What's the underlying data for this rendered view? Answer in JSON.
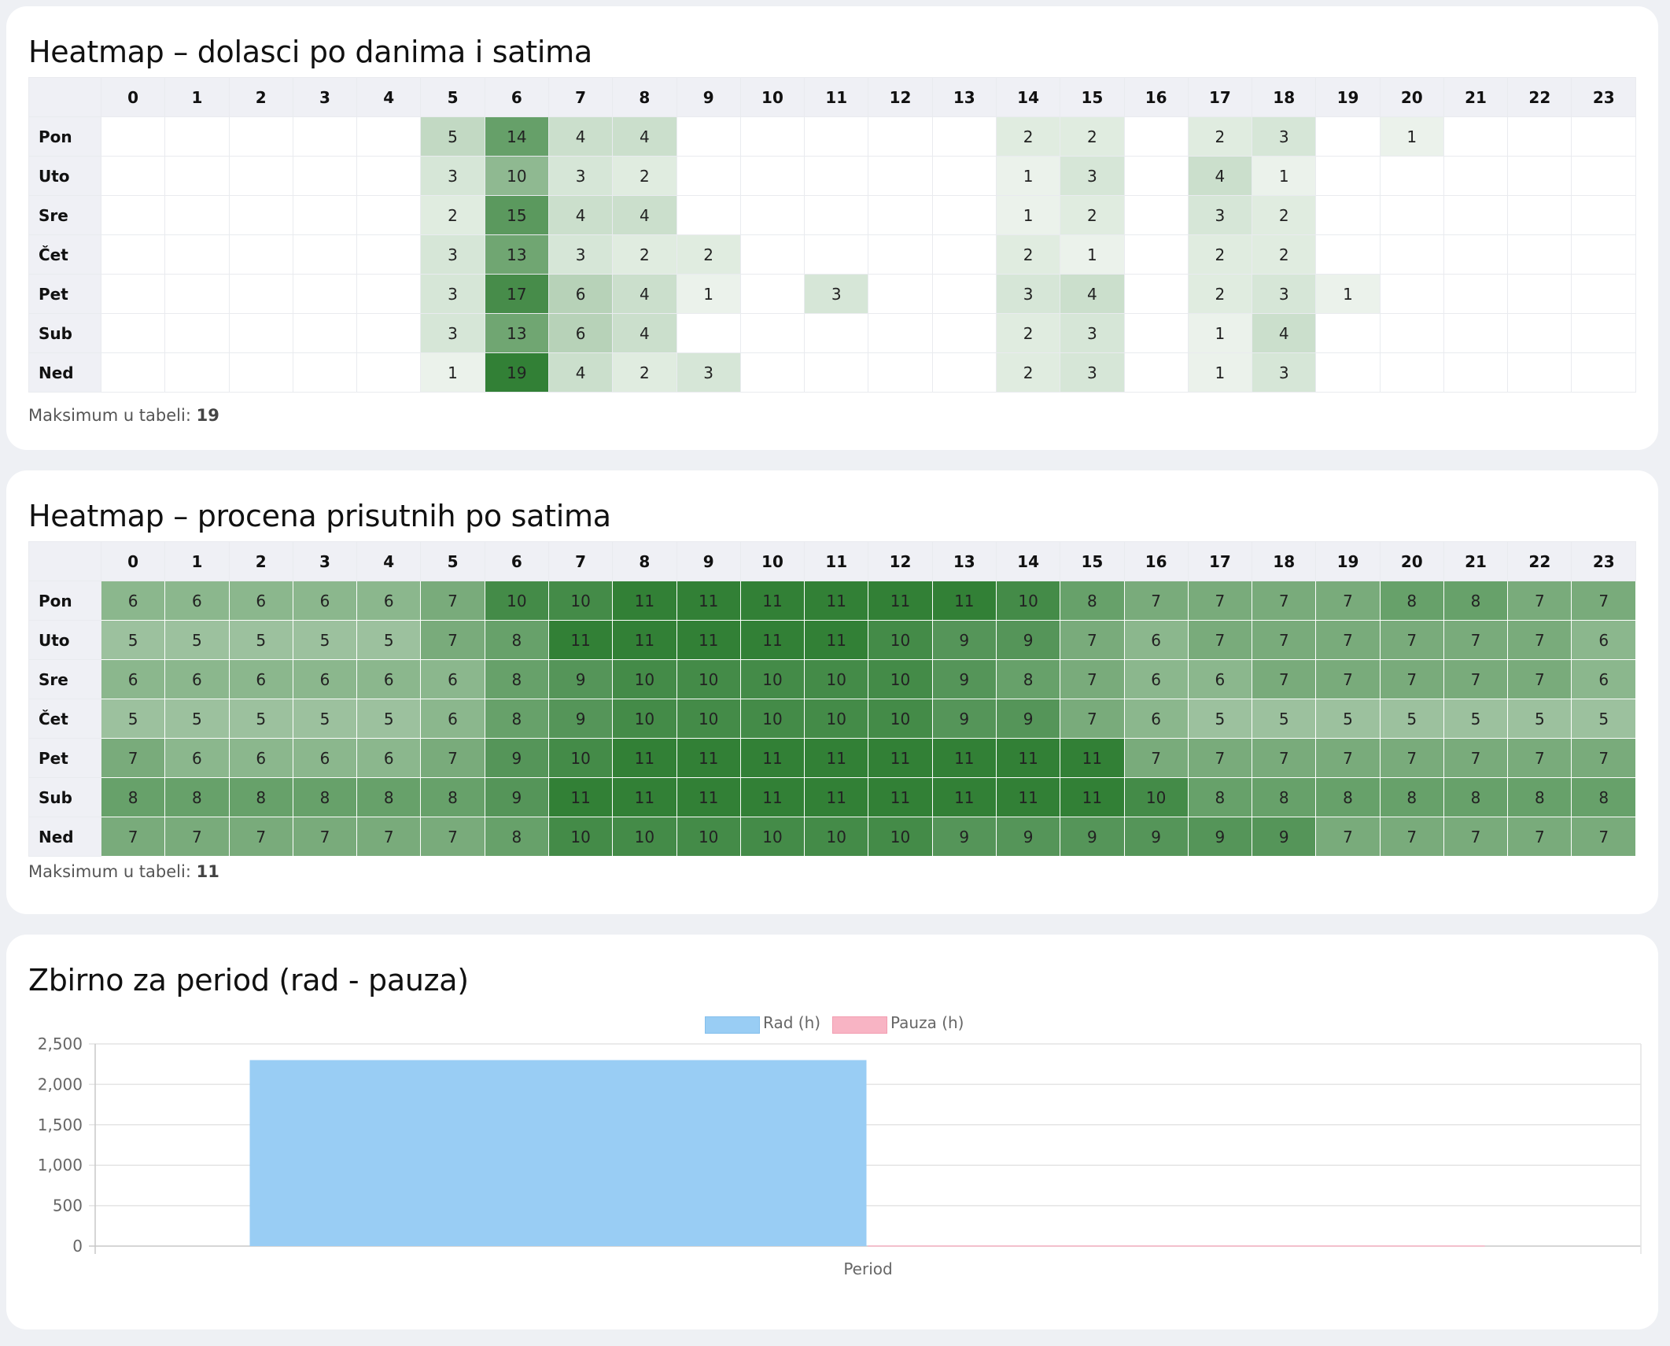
{
  "hours": [
    "0",
    "1",
    "2",
    "3",
    "4",
    "5",
    "6",
    "7",
    "8",
    "9",
    "10",
    "11",
    "12",
    "13",
    "14",
    "15",
    "16",
    "17",
    "18",
    "19",
    "20",
    "21",
    "22",
    "23"
  ],
  "heatmap_arrivals": {
    "title": "Heatmap – dolasci po danima i satima",
    "max_label": "Maksimum u tabeli:",
    "max_value": "19",
    "rows": [
      {
        "day": "Pon",
        "values": [
          "",
          "",
          "",
          "",
          "",
          "5",
          "14",
          "4",
          "4",
          "",
          "",
          "",
          "",
          "",
          "2",
          "2",
          "",
          "2",
          "3",
          "",
          "1",
          "",
          "",
          ""
        ]
      },
      {
        "day": "Uto",
        "values": [
          "",
          "",
          "",
          "",
          "",
          "3",
          "10",
          "3",
          "2",
          "",
          "",
          "",
          "",
          "",
          "1",
          "3",
          "",
          "4",
          "1",
          "",
          "",
          "",
          "",
          ""
        ]
      },
      {
        "day": "Sre",
        "values": [
          "",
          "",
          "",
          "",
          "",
          "2",
          "15",
          "4",
          "4",
          "",
          "",
          "",
          "",
          "",
          "1",
          "2",
          "",
          "3",
          "2",
          "",
          "",
          "",
          "",
          ""
        ]
      },
      {
        "day": "Čet",
        "values": [
          "",
          "",
          "",
          "",
          "",
          "3",
          "13",
          "3",
          "2",
          "2",
          "",
          "",
          "",
          "",
          "2",
          "1",
          "",
          "2",
          "2",
          "",
          "",
          "",
          "",
          ""
        ]
      },
      {
        "day": "Pet",
        "values": [
          "",
          "",
          "",
          "",
          "",
          "3",
          "17",
          "6",
          "4",
          "1",
          "",
          "3",
          "",
          "",
          "3",
          "4",
          "",
          "2",
          "3",
          "1",
          "",
          "",
          "",
          ""
        ]
      },
      {
        "day": "Sub",
        "values": [
          "",
          "",
          "",
          "",
          "",
          "3",
          "13",
          "6",
          "4",
          "",
          "",
          "",
          "",
          "",
          "2",
          "3",
          "",
          "1",
          "4",
          "",
          "",
          "",
          "",
          ""
        ]
      },
      {
        "day": "Ned",
        "values": [
          "",
          "",
          "",
          "",
          "",
          "1",
          "19",
          "4",
          "2",
          "3",
          "",
          "",
          "",
          "",
          "2",
          "3",
          "",
          "1",
          "3",
          "",
          "",
          "",
          "",
          ""
        ]
      }
    ]
  },
  "heatmap_presence": {
    "title": "Heatmap – procena prisutnih po satima",
    "max_label": "Maksimum u tabeli:",
    "max_value": "11",
    "rows": [
      {
        "day": "Pon",
        "values": [
          "6",
          "6",
          "6",
          "6",
          "6",
          "7",
          "10",
          "10",
          "11",
          "11",
          "11",
          "11",
          "11",
          "11",
          "10",
          "8",
          "7",
          "7",
          "7",
          "7",
          "8",
          "8",
          "7",
          "7"
        ]
      },
      {
        "day": "Uto",
        "values": [
          "5",
          "5",
          "5",
          "5",
          "5",
          "7",
          "8",
          "11",
          "11",
          "11",
          "11",
          "11",
          "10",
          "9",
          "9",
          "7",
          "6",
          "7",
          "7",
          "7",
          "7",
          "7",
          "7",
          "6"
        ]
      },
      {
        "day": "Sre",
        "values": [
          "6",
          "6",
          "6",
          "6",
          "6",
          "6",
          "8",
          "9",
          "10",
          "10",
          "10",
          "10",
          "10",
          "9",
          "8",
          "7",
          "6",
          "6",
          "7",
          "7",
          "7",
          "7",
          "7",
          "6"
        ]
      },
      {
        "day": "Čet",
        "values": [
          "5",
          "5",
          "5",
          "5",
          "5",
          "6",
          "8",
          "9",
          "10",
          "10",
          "10",
          "10",
          "10",
          "9",
          "9",
          "7",
          "6",
          "5",
          "5",
          "5",
          "5",
          "5",
          "5",
          "5"
        ]
      },
      {
        "day": "Pet",
        "values": [
          "7",
          "6",
          "6",
          "6",
          "6",
          "7",
          "9",
          "10",
          "11",
          "11",
          "11",
          "11",
          "11",
          "11",
          "11",
          "11",
          "7",
          "7",
          "7",
          "7",
          "7",
          "7",
          "7",
          "7"
        ]
      },
      {
        "day": "Sub",
        "values": [
          "8",
          "8",
          "8",
          "8",
          "8",
          "8",
          "9",
          "11",
          "11",
          "11",
          "11",
          "11",
          "11",
          "11",
          "11",
          "11",
          "10",
          "8",
          "8",
          "8",
          "8",
          "8",
          "8",
          "8"
        ]
      },
      {
        "day": "Ned",
        "values": [
          "7",
          "7",
          "7",
          "7",
          "7",
          "7",
          "8",
          "10",
          "10",
          "10",
          "10",
          "10",
          "10",
          "9",
          "9",
          "9",
          "9",
          "9",
          "9",
          "7",
          "7",
          "7",
          "7",
          "7"
        ]
      }
    ]
  },
  "summary": {
    "title": "Zbirno za period (rad - pauza)"
  },
  "colors": {
    "heat_base": "#2e7d32",
    "rad": "#99cdf4",
    "pauza": "#f8b4c4"
  },
  "chart_data": {
    "type": "bar",
    "title": "Zbirno za period (rad - pauza)",
    "categories": [
      "Period"
    ],
    "series": [
      {
        "name": "Rad (h)",
        "values": [
          2300
        ]
      },
      {
        "name": "Pauza (h)",
        "values": [
          8
        ]
      }
    ],
    "yticks": [
      "0",
      "500",
      "1,000",
      "1,500",
      "2,000",
      "2,500"
    ],
    "ylim": [
      0,
      2500
    ],
    "grid": true,
    "legend": "top-center"
  }
}
